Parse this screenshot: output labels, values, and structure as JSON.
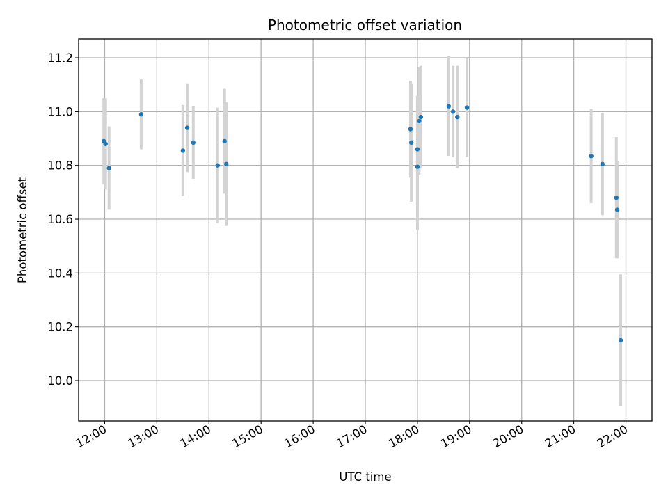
{
  "chart_data": {
    "type": "scatter",
    "title": "Photometric offset variation",
    "xlabel": "UTC time",
    "ylabel": "Photometric offset",
    "x_unit": "UTC time (HH:MM)",
    "xlim": [
      "11:30",
      "22:30"
    ],
    "ylim": [
      9.85,
      11.27
    ],
    "grid": true,
    "x_ticks": [
      "12:00",
      "13:00",
      "14:00",
      "15:00",
      "16:00",
      "17:00",
      "18:00",
      "19:00",
      "20:00",
      "21:00",
      "22:00"
    ],
    "y_ticks": [
      "10.0",
      "10.2",
      "10.4",
      "10.6",
      "10.8",
      "11.0",
      "11.2"
    ],
    "marker_color": "#1f77b4",
    "errorbar_color": "#d3d3d3",
    "points": [
      {
        "x": "11:59",
        "y": 10.89,
        "yerr": 0.16
      },
      {
        "x": "12:01",
        "y": 10.88,
        "yerr": 0.17
      },
      {
        "x": "12:05",
        "y": 10.79,
        "yerr": 0.155
      },
      {
        "x": "12:42",
        "y": 10.99,
        "yerr": 0.13
      },
      {
        "x": "13:30",
        "y": 10.855,
        "yerr": 0.17
      },
      {
        "x": "13:35",
        "y": 10.94,
        "yerr": 0.165
      },
      {
        "x": "13:42",
        "y": 10.885,
        "yerr": 0.135
      },
      {
        "x": "14:10",
        "y": 10.8,
        "yerr": 0.215
      },
      {
        "x": "14:18",
        "y": 10.89,
        "yerr": 0.195
      },
      {
        "x": "14:20",
        "y": 10.805,
        "yerr": 0.23
      },
      {
        "x": "17:52",
        "y": 10.935,
        "yerr": 0.18
      },
      {
        "x": "17:53",
        "y": 10.885,
        "yerr": 0.22
      },
      {
        "x": "18:00",
        "y": 10.86,
        "yerr": 0.2
      },
      {
        "x": "18:00",
        "y": 10.795,
        "yerr": 0.235
      },
      {
        "x": "18:02",
        "y": 10.965,
        "yerr": 0.2
      },
      {
        "x": "18:04",
        "y": 10.98,
        "yerr": 0.19
      },
      {
        "x": "18:36",
        "y": 11.02,
        "yerr": 0.185
      },
      {
        "x": "18:41",
        "y": 11.0,
        "yerr": 0.17
      },
      {
        "x": "18:46",
        "y": 10.98,
        "yerr": 0.19
      },
      {
        "x": "18:57",
        "y": 11.015,
        "yerr": 0.185
      },
      {
        "x": "21:20",
        "y": 10.835,
        "yerr": 0.175
      },
      {
        "x": "21:33",
        "y": 10.805,
        "yerr": 0.19
      },
      {
        "x": "21:49",
        "y": 10.68,
        "yerr": 0.225
      },
      {
        "x": "21:50",
        "y": 10.635,
        "yerr": 0.18
      },
      {
        "x": "21:54",
        "y": 10.15,
        "yerr": 0.245
      }
    ]
  }
}
